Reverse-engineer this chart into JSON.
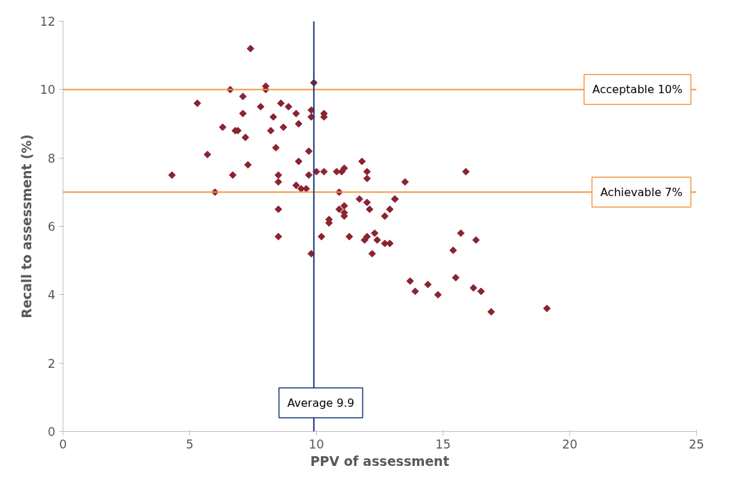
{
  "chart_data": {
    "type": "scatter",
    "xlabel": "PPV of assessment",
    "ylabel": "Recall to assessment (%)",
    "xlim": [
      0,
      25
    ],
    "ylim": [
      0,
      12
    ],
    "xticks": [
      0,
      5,
      10,
      15,
      20,
      25
    ],
    "yticks": [
      0,
      2,
      4,
      6,
      8,
      10,
      12
    ],
    "grid": false,
    "marker": "diamond",
    "series": [
      {
        "color": "#8b2331",
        "x": [
          4.3,
          5.3,
          5.7,
          6.0,
          6.3,
          6.6,
          6.7,
          6.8,
          6.9,
          7.1,
          7.1,
          7.2,
          7.3,
          7.4,
          7.8,
          8.0,
          8.0,
          8.2,
          8.3,
          8.4,
          8.5,
          8.5,
          8.5,
          8.5,
          8.6,
          8.7,
          8.9,
          9.2,
          9.2,
          9.3,
          9.3,
          9.4,
          9.6,
          9.7,
          9.7,
          9.8,
          9.8,
          9.8,
          9.9,
          10.0,
          10.3,
          10.2,
          10.3,
          10.3,
          10.5,
          10.5,
          10.8,
          10.9,
          10.9,
          11.0,
          11.1,
          11.1,
          11.1,
          11.1,
          11.3,
          11.8,
          11.7,
          11.9,
          12.0,
          12.0,
          12.0,
          12.0,
          12.1,
          12.2,
          12.3,
          12.4,
          12.7,
          12.7,
          12.9,
          12.9,
          13.1,
          13.1,
          13.5,
          13.7,
          13.9,
          14.4,
          14.8,
          15.4,
          15.5,
          15.7,
          15.9,
          16.2,
          16.3,
          16.5,
          16.9,
          19.1
        ],
        "values": [
          7.5,
          9.6,
          8.1,
          7.0,
          8.9,
          10.0,
          7.5,
          8.8,
          8.8,
          9.8,
          9.3,
          8.6,
          7.8,
          11.2,
          9.5,
          10.1,
          10.0,
          8.8,
          9.2,
          8.3,
          7.5,
          7.3,
          6.5,
          5.7,
          9.6,
          8.9,
          9.5,
          9.3,
          7.2,
          9.0,
          7.9,
          7.1,
          7.1,
          7.5,
          8.2,
          9.4,
          9.2,
          5.2,
          10.2,
          7.6,
          7.6,
          5.7,
          9.3,
          9.2,
          6.1,
          6.2,
          7.6,
          6.5,
          7.0,
          7.6,
          7.7,
          6.6,
          6.4,
          6.3,
          5.7,
          7.9,
          6.8,
          5.6,
          6.7,
          7.6,
          7.4,
          5.7,
          6.5,
          5.2,
          5.8,
          5.6,
          6.3,
          5.5,
          6.5,
          5.5,
          6.8,
          6.8,
          7.3,
          4.4,
          4.1,
          4.3,
          4.0,
          5.3,
          4.5,
          5.8,
          7.6,
          4.2,
          5.6,
          4.1,
          3.5,
          3.6
        ]
      }
    ],
    "ref_lines": [
      {
        "axis": "y",
        "value": 10,
        "label": "Acceptable 10%",
        "color": "#f79646"
      },
      {
        "axis": "y",
        "value": 7,
        "label": "Achievable 7%",
        "color": "#f79646"
      },
      {
        "axis": "x",
        "value": 9.9,
        "label": "Average 9.9",
        "color": "#1f3a7a"
      }
    ]
  }
}
